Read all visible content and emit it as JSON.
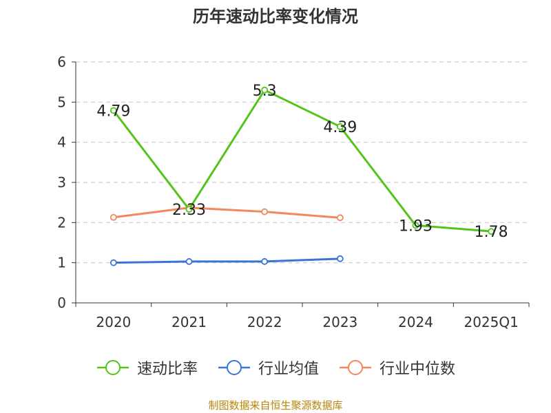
{
  "title": "历年速动比率变化情况",
  "source": "制图数据来自恒生聚源数据库",
  "colors": {
    "axis": "#333333",
    "grid": "#cccccc",
    "text": "#333333",
    "source": "#b8860b"
  },
  "chart_data": {
    "type": "line",
    "title": "历年速动比率变化情况",
    "categories": [
      "2020",
      "2021",
      "2022",
      "2023",
      "2024",
      "2025Q1"
    ],
    "ylim": [
      0,
      6
    ],
    "yticks": [
      0,
      1,
      2,
      3,
      4,
      5,
      6
    ],
    "grid": true,
    "legend_position": "bottom",
    "series": [
      {
        "name": "速动比率",
        "color": "#52c41a",
        "values": [
          4.79,
          2.33,
          5.3,
          4.39,
          1.93,
          1.78
        ],
        "labels": [
          "4.79",
          "2.33",
          "5.3",
          "4.39",
          "1.93",
          "1.78"
        ]
      },
      {
        "name": "行业均值",
        "color": "#3a75d6",
        "values": [
          1.0,
          1.03,
          1.03,
          1.1,
          null,
          null
        ]
      },
      {
        "name": "行业中位数",
        "color": "#f4875c",
        "values": [
          2.13,
          2.37,
          2.27,
          2.12,
          null,
          null
        ]
      }
    ]
  }
}
